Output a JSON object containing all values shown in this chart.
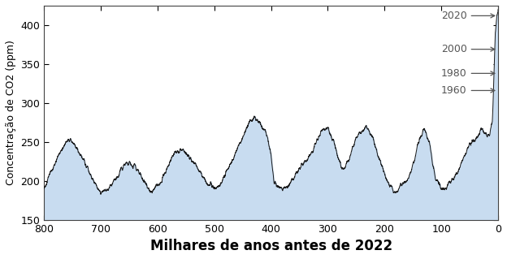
{
  "xlabel": "Milhares de anos antes de 2022",
  "ylabel": "Concentração de CO2 (ppm)",
  "xlim": [
    800,
    0
  ],
  "ylim": [
    150,
    425
  ],
  "yticks": [
    150,
    200,
    250,
    300,
    350,
    400
  ],
  "xticks": [
    800,
    700,
    600,
    500,
    400,
    300,
    200,
    100,
    0
  ],
  "fill_color": "#c8dcf0",
  "fill_alpha": 1.0,
  "line_color": "#1a1a1a",
  "line_width": 0.7,
  "bg_color": "#ffffff",
  "xlabel_fontsize": 12,
  "ylabel_fontsize": 9,
  "tick_fontsize": 9,
  "annotation_fontsize": 9,
  "annotations": [
    {
      "text": "2020",
      "y_data": 412
    },
    {
      "text": "2000",
      "y_data": 369
    },
    {
      "text": "1980",
      "y_data": 338
    },
    {
      "text": "1960",
      "y_data": 316
    }
  ],
  "ctrl_x": [
    0,
    2,
    5,
    8,
    10,
    15,
    18,
    22,
    30,
    40,
    50,
    60,
    70,
    80,
    90,
    100,
    110,
    115,
    120,
    130,
    140,
    150,
    160,
    170,
    180,
    190,
    200,
    210,
    220,
    230,
    240,
    250,
    260,
    270,
    275,
    280,
    290,
    300,
    310,
    320,
    330,
    340,
    350,
    360,
    370,
    380,
    390,
    395,
    400,
    405,
    410,
    420,
    430,
    440,
    450,
    460,
    470,
    480,
    490,
    500,
    510,
    520,
    530,
    540,
    550,
    560,
    570,
    580,
    590,
    600,
    610,
    615,
    620,
    630,
    640,
    650,
    660,
    670,
    680,
    690,
    700,
    710,
    720,
    730,
    740,
    750,
    760,
    770,
    780,
    790,
    800
  ],
  "ctrl_y": [
    420,
    415,
    390,
    320,
    280,
    260,
    258,
    262,
    270,
    255,
    245,
    230,
    215,
    200,
    195,
    190,
    200,
    220,
    245,
    265,
    250,
    220,
    200,
    195,
    185,
    195,
    210,
    230,
    255,
    270,
    265,
    255,
    235,
    220,
    215,
    225,
    250,
    270,
    265,
    250,
    235,
    225,
    215,
    205,
    195,
    190,
    192,
    200,
    235,
    255,
    265,
    275,
    280,
    270,
    255,
    240,
    225,
    210,
    195,
    190,
    195,
    205,
    215,
    225,
    235,
    240,
    235,
    220,
    205,
    190,
    185,
    188,
    195,
    210,
    220,
    225,
    218,
    205,
    195,
    188,
    185,
    195,
    210,
    228,
    240,
    250,
    252,
    240,
    225,
    210,
    192
  ]
}
